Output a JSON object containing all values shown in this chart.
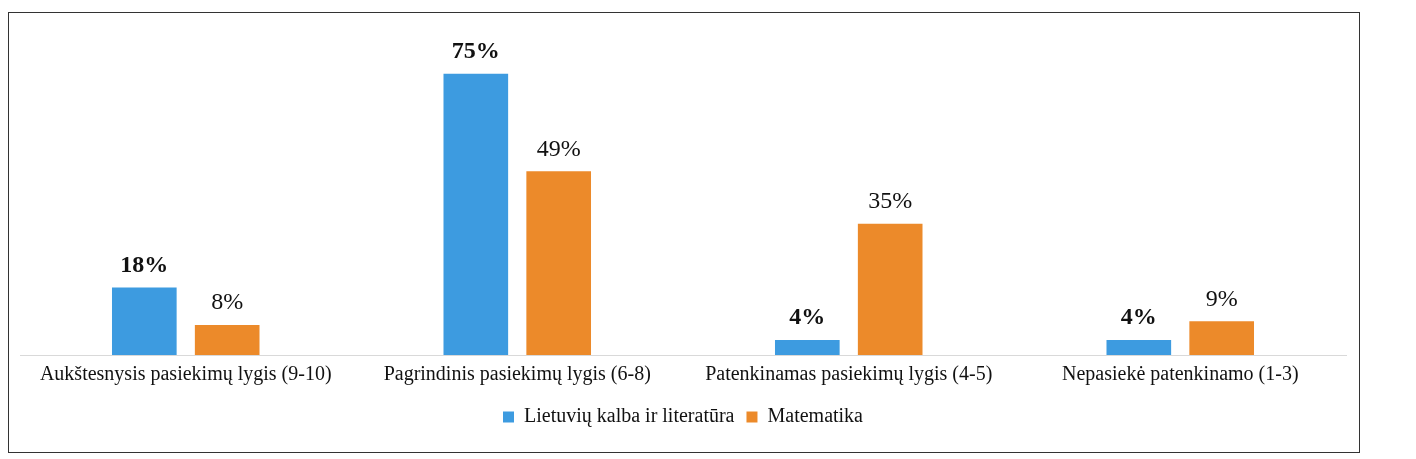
{
  "chart_data": {
    "type": "bar",
    "categories": [
      "Aukštesnysis pasiekimų lygis (9-10)",
      "Pagrindinis pasiekimų lygis (6-8)",
      "Patenkinamas pasiekimų lygis (4-5)",
      "Nepasiekė patenkinamo (1-3)"
    ],
    "series": [
      {
        "name": "Lietuvių kalba ir literatūra",
        "color": "#3d9be0",
        "values": [
          18,
          75,
          4,
          4
        ],
        "value_labels": [
          "18%",
          "75%",
          "4%",
          "4%"
        ]
      },
      {
        "name": "Matematika",
        "color": "#ec8a2a",
        "values": [
          8,
          49,
          35,
          9
        ],
        "value_labels": [
          "8%",
          "49%",
          "35%",
          "9%"
        ]
      }
    ],
    "grid": false,
    "legend": "bottom"
  }
}
